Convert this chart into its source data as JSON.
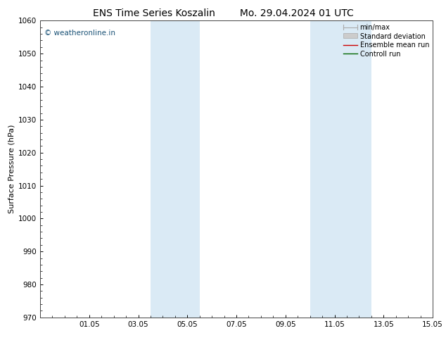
{
  "title_left": "ENS Time Series Koszalin",
  "title_right": "Mo. 29.04.2024 01 UTC",
  "ylabel": "Surface Pressure (hPa)",
  "ylim": [
    970,
    1060
  ],
  "yticks": [
    970,
    980,
    990,
    1000,
    1010,
    1020,
    1030,
    1040,
    1050,
    1060
  ],
  "xtick_labels": [
    "01.05",
    "03.05",
    "05.05",
    "07.05",
    "09.05",
    "11.05",
    "13.05",
    "15.05"
  ],
  "xtick_positions": [
    2,
    4,
    6,
    8,
    10,
    12,
    14,
    16
  ],
  "shaded_bands": [
    {
      "x_start": 4.5,
      "x_end": 6.5
    },
    {
      "x_start": 11.0,
      "x_end": 12.0
    },
    {
      "x_start": 12.0,
      "x_end": 13.5
    }
  ],
  "shade_color": "#daeaf5",
  "watermark_text": "© weatheronline.in",
  "watermark_color": "#1a5276",
  "background_color": "#ffffff",
  "minmax_color": "#aaaaaa",
  "stddev_color": "#cccccc",
  "ensemble_color": "#cc0000",
  "control_color": "#006600",
  "tick_direction": "in",
  "spine_color": "#444444",
  "title_fontsize": 10,
  "axis_label_fontsize": 8,
  "tick_label_fontsize": 7.5,
  "legend_fontsize": 7,
  "watermark_fontsize": 7.5,
  "x_min": 0,
  "x_max": 16
}
